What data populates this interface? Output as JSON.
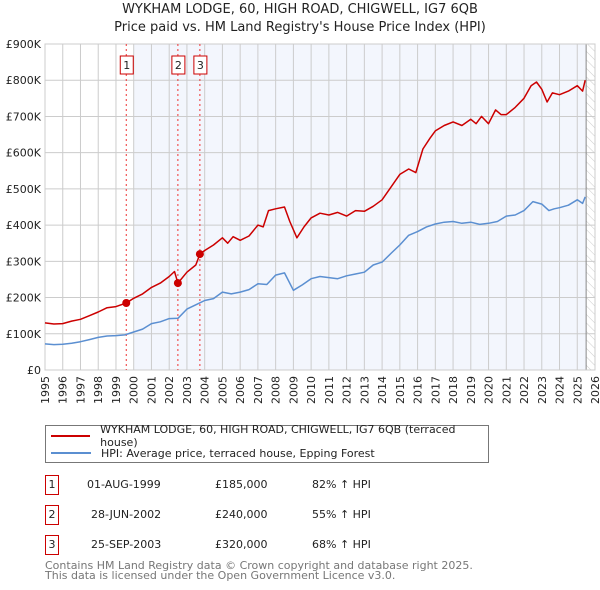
{
  "header": {
    "title": "WYKHAM LODGE, 60, HIGH ROAD, CHIGWELL, IG7 6QB",
    "subtitle": "Price paid vs. HM Land Registry's House Price Index (HPI)"
  },
  "chart_data": {
    "type": "line",
    "title": "WYKHAM LODGE, 60, HIGH ROAD, CHIGWELL, IG7 6QB",
    "subtitle": "Price paid vs. HM Land Registry's House Price Index (HPI)",
    "xlabel": "",
    "ylabel": "",
    "xlim": [
      1995,
      2026
    ],
    "ylim": [
      0,
      900000
    ],
    "grid": true,
    "x_ticks": [
      "1995",
      "1996",
      "1997",
      "1998",
      "1999",
      "2000",
      "2001",
      "2002",
      "2003",
      "2004",
      "2005",
      "2006",
      "2007",
      "2008",
      "2009",
      "2010",
      "2011",
      "2012",
      "2013",
      "2014",
      "2015",
      "2016",
      "2017",
      "2018",
      "2019",
      "2020",
      "2021",
      "2022",
      "2023",
      "2024",
      "2025",
      "2026"
    ],
    "y_ticks": [
      {
        "value": 0,
        "label": "£0"
      },
      {
        "value": 100000,
        "label": "£100K"
      },
      {
        "value": 200000,
        "label": "£200K"
      },
      {
        "value": 300000,
        "label": "£300K"
      },
      {
        "value": 400000,
        "label": "£400K"
      },
      {
        "value": 500000,
        "label": "£500K"
      },
      {
        "value": 600000,
        "label": "£600K"
      },
      {
        "value": 700000,
        "label": "£700K"
      },
      {
        "value": 800000,
        "label": "£800K"
      },
      {
        "value": 900000,
        "label": "£900K"
      }
    ],
    "shaded_from": 2000,
    "hatched_from": 2025.5,
    "series": [
      {
        "name": "WYKHAM LODGE, 60, HIGH ROAD, CHIGWELL, IG7 6QB (terraced house)",
        "color": "#cc0000",
        "x": [
          1995,
          1995.5,
          1996,
          1996.5,
          1997,
          1997.5,
          1998,
          1998.5,
          1999,
          1999.58,
          2000,
          2000.5,
          2001,
          2001.5,
          2002,
          2002.3,
          2002.49,
          2003,
          2003.5,
          2003.73,
          2004,
          2004.5,
          2005,
          2005.3,
          2005.6,
          2006,
          2006.5,
          2007,
          2007.3,
          2007.6,
          2008,
          2008.5,
          2008.8,
          2009.2,
          2009.6,
          2010,
          2010.5,
          2011,
          2011.5,
          2012,
          2012.5,
          2013,
          2013.5,
          2014,
          2014.5,
          2015,
          2015.5,
          2015.9,
          2016.3,
          2016.7,
          2017,
          2017.5,
          2018,
          2018.5,
          2019,
          2019.3,
          2019.6,
          2020,
          2020.4,
          2020.7,
          2021,
          2021.5,
          2022,
          2022.4,
          2022.7,
          2023,
          2023.3,
          2023.6,
          2024,
          2024.5,
          2025,
          2025.3,
          2025.45
        ],
        "y": [
          130000,
          127000,
          128000,
          135000,
          140000,
          150000,
          160000,
          172000,
          175000,
          185000,
          198000,
          210000,
          228000,
          240000,
          258000,
          272000,
          240000,
          270000,
          290000,
          320000,
          330000,
          345000,
          365000,
          350000,
          368000,
          358000,
          370000,
          400000,
          395000,
          440000,
          445000,
          450000,
          410000,
          365000,
          395000,
          420000,
          433000,
          428000,
          435000,
          425000,
          440000,
          438000,
          452000,
          470000,
          505000,
          540000,
          555000,
          545000,
          610000,
          640000,
          660000,
          675000,
          685000,
          675000,
          692000,
          680000,
          700000,
          680000,
          718000,
          705000,
          705000,
          725000,
          750000,
          785000,
          795000,
          775000,
          740000,
          765000,
          760000,
          770000,
          785000,
          770000,
          800000
        ]
      },
      {
        "name": "HPI: Average price, terraced house, Epping Forest",
        "color": "#5b8fd1",
        "x": [
          1995,
          1995.5,
          1996,
          1996.5,
          1997,
          1997.5,
          1998,
          1998.5,
          1999,
          1999.5,
          2000,
          2000.5,
          2001,
          2001.5,
          2002,
          2002.5,
          2003,
          2003.5,
          2004,
          2004.5,
          2005,
          2005.5,
          2006,
          2006.5,
          2007,
          2007.5,
          2008,
          2008.5,
          2009,
          2009.5,
          2010,
          2010.5,
          2011,
          2011.5,
          2012,
          2012.5,
          2013,
          2013.5,
          2014,
          2014.5,
          2015,
          2015.5,
          2016,
          2016.5,
          2017,
          2017.5,
          2018,
          2018.5,
          2019,
          2019.5,
          2020,
          2020.5,
          2021,
          2021.5,
          2022,
          2022.5,
          2023,
          2023.4,
          2023.7,
          2024,
          2024.5,
          2025,
          2025.3,
          2025.45
        ],
        "y": [
          72000,
          70000,
          71000,
          74000,
          78000,
          84000,
          90000,
          94000,
          95000,
          97000,
          105000,
          113000,
          128000,
          133000,
          142000,
          143000,
          168000,
          180000,
          192000,
          197000,
          215000,
          210000,
          215000,
          222000,
          238000,
          236000,
          262000,
          268000,
          220000,
          235000,
          252000,
          258000,
          255000,
          252000,
          260000,
          265000,
          270000,
          290000,
          298000,
          322000,
          345000,
          372000,
          382000,
          395000,
          403000,
          408000,
          410000,
          405000,
          408000,
          402000,
          405000,
          410000,
          425000,
          428000,
          440000,
          465000,
          458000,
          440000,
          445000,
          448000,
          455000,
          470000,
          460000,
          478000
        ]
      }
    ],
    "sales": [
      {
        "id": "1",
        "x": 1999.58,
        "date": "01-AUG-1999",
        "price": 185000,
        "price_label": "£185,000",
        "hpi": "82% ↑ HPI"
      },
      {
        "id": "2",
        "x": 2002.49,
        "date": "28-JUN-2002",
        "price": 240000,
        "price_label": "£240,000",
        "hpi": "55% ↑ HPI"
      },
      {
        "id": "3",
        "x": 2003.73,
        "date": "25-SEP-2003",
        "price": 320000,
        "price_label": "£320,000",
        "hpi": "68% ↑ HPI"
      }
    ]
  },
  "legend": {
    "property": "WYKHAM LODGE, 60, HIGH ROAD, CHIGWELL, IG7 6QB (terraced house)",
    "hpi": "HPI: Average price, terraced house, Epping Forest"
  },
  "footer": {
    "line1": "Contains HM Land Registry data © Crown copyright and database right 2025.",
    "line2": "This data is licensed under the Open Government Licence v3.0."
  }
}
